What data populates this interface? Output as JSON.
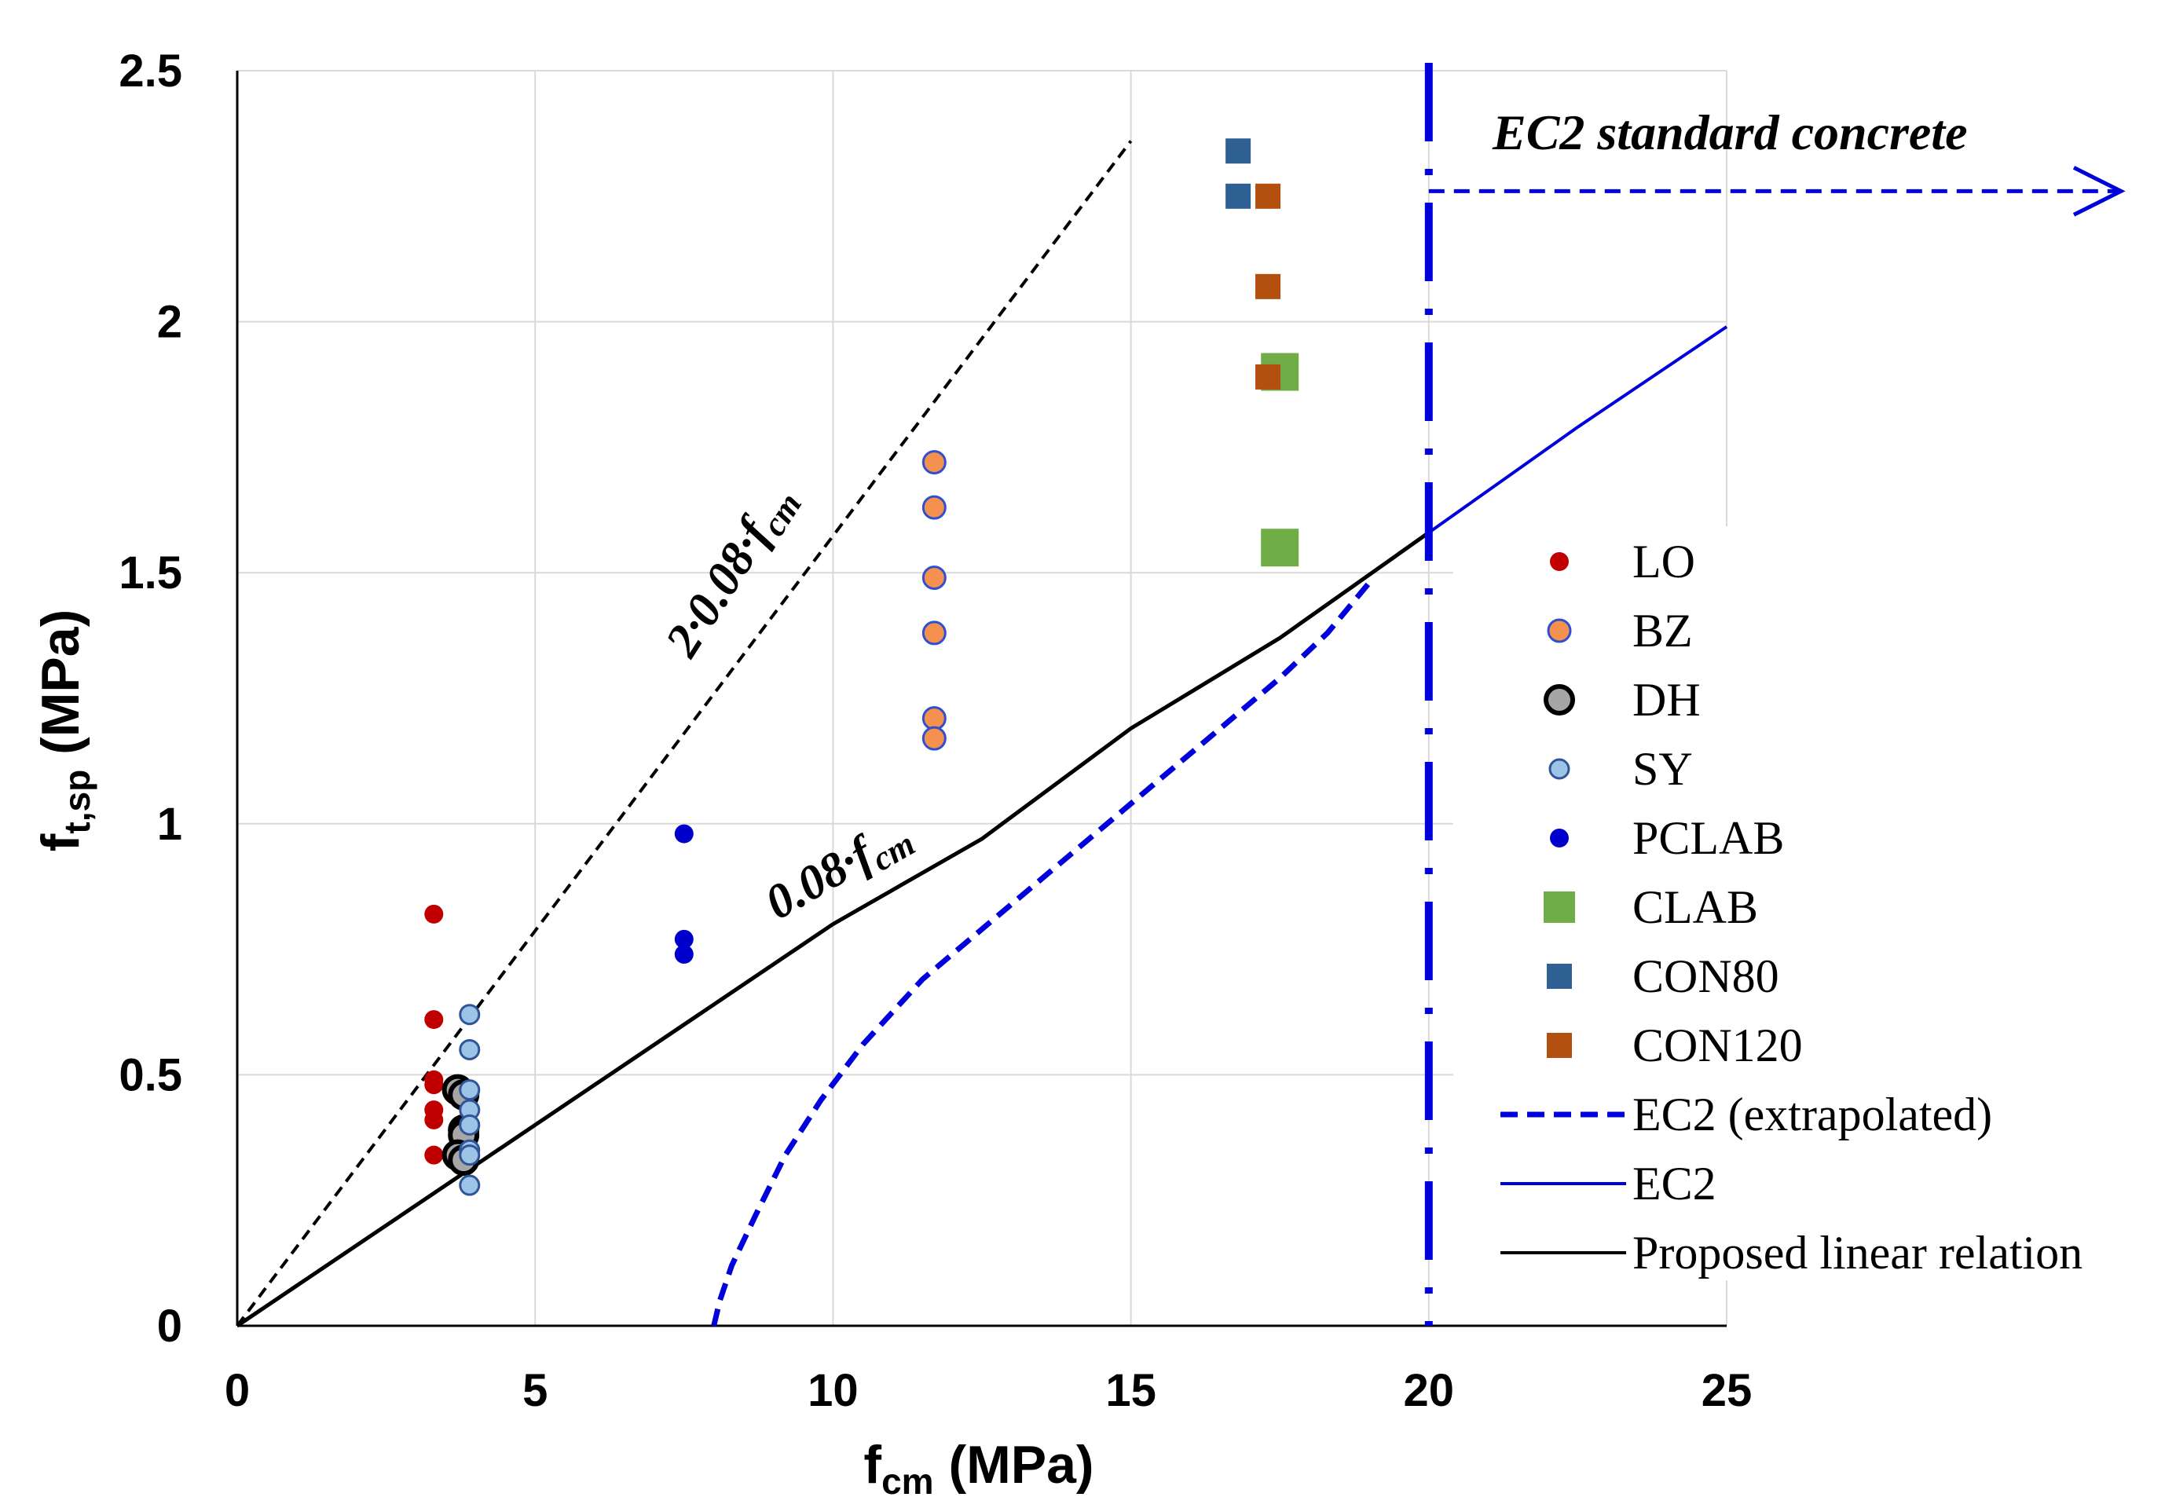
{
  "chart_data": {
    "type": "scatter",
    "xlabel": "f",
    "xlabel_sub": "cm",
    "xlabel_unit": " (MPa)",
    "ylabel": "f",
    "ylabel_sub": "t,sp",
    "ylabel_unit": " (MPa)",
    "xlim": [
      0,
      25
    ],
    "ylim": [
      0,
      2.5
    ],
    "x_ticks": [
      0,
      5,
      10,
      15,
      20,
      25
    ],
    "y_ticks": [
      0,
      0.5,
      1,
      1.5,
      2,
      2.5
    ],
    "x_tick_labels": [
      "0",
      "5",
      "10",
      "15",
      "20",
      "25"
    ],
    "y_tick_labels": [
      "0",
      "0.5",
      "1",
      "1.5",
      "2",
      "2.5"
    ],
    "grid": true,
    "series": [
      {
        "name": "LO",
        "marker": "circle",
        "color": "#C00000",
        "stroke": "#C00000",
        "size": "small",
        "points": [
          [
            3.3,
            0.82
          ],
          [
            3.3,
            0.61
          ],
          [
            3.3,
            0.49
          ],
          [
            3.3,
            0.48
          ],
          [
            3.3,
            0.43
          ],
          [
            3.3,
            0.41
          ],
          [
            3.3,
            0.34
          ]
        ]
      },
      {
        "name": "BZ",
        "marker": "circle",
        "color": "#F4914F",
        "stroke": "#2F4FD0",
        "size": "medium",
        "points": [
          [
            11.7,
            1.72
          ],
          [
            11.7,
            1.63
          ],
          [
            11.7,
            1.49
          ],
          [
            11.7,
            1.38
          ],
          [
            11.7,
            1.21
          ],
          [
            11.7,
            1.17
          ]
        ]
      },
      {
        "name": "DH",
        "marker": "circle",
        "color": "#A6A6A6",
        "stroke": "#000000",
        "size": "large",
        "points": [
          [
            3.7,
            0.47
          ],
          [
            3.8,
            0.46
          ],
          [
            3.8,
            0.39
          ],
          [
            3.8,
            0.38
          ],
          [
            3.7,
            0.34
          ],
          [
            3.8,
            0.33
          ]
        ]
      },
      {
        "name": "SY",
        "marker": "circle",
        "color": "#9DC3E6",
        "stroke": "#2F5597",
        "size": "small",
        "points": [
          [
            3.9,
            0.62
          ],
          [
            3.9,
            0.55
          ],
          [
            3.9,
            0.47
          ],
          [
            3.9,
            0.43
          ],
          [
            3.9,
            0.4
          ],
          [
            3.9,
            0.35
          ],
          [
            3.9,
            0.34
          ],
          [
            3.9,
            0.28
          ]
        ]
      },
      {
        "name": "PCLAB",
        "marker": "circle",
        "color": "#0000CC",
        "stroke": "#0000CC",
        "size": "small",
        "points": [
          [
            7.5,
            0.98
          ],
          [
            7.5,
            0.77
          ],
          [
            7.5,
            0.74
          ]
        ]
      },
      {
        "name": "CLAB",
        "marker": "square",
        "color": "#70AD47",
        "stroke": "#70AD47",
        "size": "large",
        "points": [
          [
            17.5,
            1.9
          ],
          [
            17.5,
            1.55
          ]
        ]
      },
      {
        "name": "CON80",
        "marker": "square",
        "color": "#2E6094",
        "stroke": "#2E6094",
        "size": "small",
        "points": [
          [
            16.8,
            2.34
          ],
          [
            16.8,
            2.25
          ]
        ]
      },
      {
        "name": "CON120",
        "marker": "square",
        "color": "#B4500F",
        "stroke": "#B4500F",
        "size": "small",
        "points": [
          [
            17.3,
            2.25
          ],
          [
            17.3,
            2.07
          ],
          [
            17.3,
            1.89
          ]
        ]
      },
      {
        "name": "EC2 (extrapolated)",
        "marker": "line",
        "color": "#0000DD",
        "dash": "dashed",
        "points": [
          [
            8,
            0.0
          ],
          [
            8.1,
            0.05
          ],
          [
            8.3,
            0.12
          ],
          [
            8.7,
            0.22
          ],
          [
            9.2,
            0.34
          ],
          [
            9.8,
            0.45
          ],
          [
            10.5,
            0.56
          ],
          [
            11.5,
            0.69
          ],
          [
            12.5,
            0.79
          ],
          [
            13.5,
            0.89
          ],
          [
            14.5,
            0.99
          ],
          [
            15.5,
            1.09
          ],
          [
            16.5,
            1.19
          ],
          [
            17.5,
            1.29
          ],
          [
            18.3,
            1.38
          ],
          [
            19.0,
            1.48
          ]
        ]
      },
      {
        "name": "EC2",
        "marker": "line",
        "color": "#0000DD",
        "dash": "solid",
        "points": [
          [
            20,
            1.58
          ],
          [
            22.5,
            1.79
          ],
          [
            25,
            1.99
          ]
        ]
      },
      {
        "name": "Proposed linear relation",
        "marker": "line",
        "color": "#000000",
        "dash": "solid",
        "points": [
          [
            0,
            0
          ],
          [
            2.5,
            0.2
          ],
          [
            5,
            0.4
          ],
          [
            7.5,
            0.6
          ],
          [
            10,
            0.8
          ],
          [
            12.5,
            0.97
          ],
          [
            15,
            1.19
          ],
          [
            17.5,
            1.37
          ],
          [
            20,
            1.58
          ]
        ]
      }
    ],
    "reference_lines": [
      {
        "label": "2·0.08·f",
        "label_sub": "cm",
        "points": [
          [
            0,
            0
          ],
          [
            15,
            2.36
          ]
        ],
        "color": "#000000",
        "dash": "dashed"
      },
      {
        "label": "0.08·f",
        "label_sub": "cm"
      }
    ],
    "annotations": {
      "ec2_boundary_x": 20,
      "ec2_standard_label": "EC2 standard concrete",
      "ec2_arrow_y": 2.26
    },
    "legend": {
      "position": "right",
      "entries": [
        "LO",
        "BZ",
        "DH",
        "SY",
        "PCLAB",
        "CLAB",
        "CON80",
        "CON120",
        "EC2 (extrapolated)",
        "EC2",
        "Proposed linear relation"
      ]
    }
  }
}
